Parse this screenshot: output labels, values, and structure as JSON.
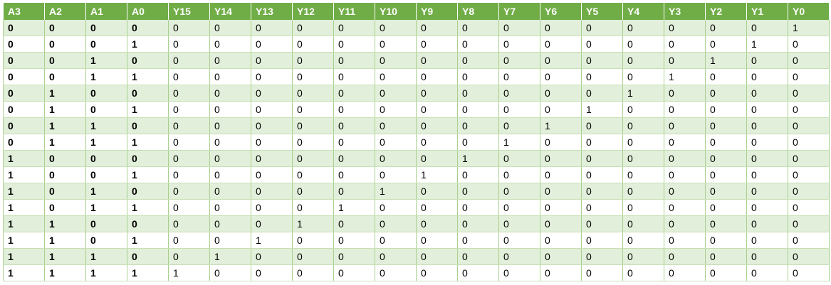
{
  "table": {
    "inputs": [
      "A3",
      "A2",
      "A1",
      "A0"
    ],
    "outputs": [
      "Y15",
      "Y14",
      "Y13",
      "Y12",
      "Y11",
      "Y10",
      "Y9",
      "Y8",
      "Y7",
      "Y6",
      "Y5",
      "Y4",
      "Y3",
      "Y2",
      "Y1",
      "Y0"
    ],
    "rows": [
      {
        "in": [
          "0",
          "0",
          "0",
          "0"
        ],
        "out": [
          "0",
          "0",
          "0",
          "0",
          "0",
          "0",
          "0",
          "0",
          "0",
          "0",
          "0",
          "0",
          "0",
          "0",
          "0",
          "1"
        ]
      },
      {
        "in": [
          "0",
          "0",
          "0",
          "1"
        ],
        "out": [
          "0",
          "0",
          "0",
          "0",
          "0",
          "0",
          "0",
          "0",
          "0",
          "0",
          "0",
          "0",
          "0",
          "0",
          "1",
          "0"
        ]
      },
      {
        "in": [
          "0",
          "0",
          "1",
          "0"
        ],
        "out": [
          "0",
          "0",
          "0",
          "0",
          "0",
          "0",
          "0",
          "0",
          "0",
          "0",
          "0",
          "0",
          "0",
          "1",
          "0",
          "0"
        ]
      },
      {
        "in": [
          "0",
          "0",
          "1",
          "1"
        ],
        "out": [
          "0",
          "0",
          "0",
          "0",
          "0",
          "0",
          "0",
          "0",
          "0",
          "0",
          "0",
          "0",
          "1",
          "0",
          "0",
          "0"
        ]
      },
      {
        "in": [
          "0",
          "1",
          "0",
          "0"
        ],
        "out": [
          "0",
          "0",
          "0",
          "0",
          "0",
          "0",
          "0",
          "0",
          "0",
          "0",
          "0",
          "1",
          "0",
          "0",
          "0",
          "0"
        ]
      },
      {
        "in": [
          "0",
          "1",
          "0",
          "1"
        ],
        "out": [
          "0",
          "0",
          "0",
          "0",
          "0",
          "0",
          "0",
          "0",
          "0",
          "0",
          "1",
          "0",
          "0",
          "0",
          "0",
          "0"
        ]
      },
      {
        "in": [
          "0",
          "1",
          "1",
          "0"
        ],
        "out": [
          "0",
          "0",
          "0",
          "0",
          "0",
          "0",
          "0",
          "0",
          "0",
          "1",
          "0",
          "0",
          "0",
          "0",
          "0",
          "0"
        ]
      },
      {
        "in": [
          "0",
          "1",
          "1",
          "1"
        ],
        "out": [
          "0",
          "0",
          "0",
          "0",
          "0",
          "0",
          "0",
          "0",
          "1",
          "0",
          "0",
          "0",
          "0",
          "0",
          "0",
          "0"
        ]
      },
      {
        "in": [
          "1",
          "0",
          "0",
          "0"
        ],
        "out": [
          "0",
          "0",
          "0",
          "0",
          "0",
          "0",
          "0",
          "1",
          "0",
          "0",
          "0",
          "0",
          "0",
          "0",
          "0",
          "0"
        ]
      },
      {
        "in": [
          "1",
          "0",
          "0",
          "1"
        ],
        "out": [
          "0",
          "0",
          "0",
          "0",
          "0",
          "0",
          "1",
          "0",
          "0",
          "0",
          "0",
          "0",
          "0",
          "0",
          "0",
          "0"
        ]
      },
      {
        "in": [
          "1",
          "0",
          "1",
          "0"
        ],
        "out": [
          "0",
          "0",
          "0",
          "0",
          "0",
          "1",
          "0",
          "0",
          "0",
          "0",
          "0",
          "0",
          "0",
          "0",
          "0",
          "0"
        ]
      },
      {
        "in": [
          "1",
          "0",
          "1",
          "1"
        ],
        "out": [
          "0",
          "0",
          "0",
          "0",
          "1",
          "0",
          "0",
          "0",
          "0",
          "0",
          "0",
          "0",
          "0",
          "0",
          "0",
          "0"
        ]
      },
      {
        "in": [
          "1",
          "1",
          "0",
          "0"
        ],
        "out": [
          "0",
          "0",
          "0",
          "1",
          "0",
          "0",
          "0",
          "0",
          "0",
          "0",
          "0",
          "0",
          "0",
          "0",
          "0",
          "0"
        ]
      },
      {
        "in": [
          "1",
          "1",
          "0",
          "1"
        ],
        "out": [
          "0",
          "0",
          "1",
          "0",
          "0",
          "0",
          "0",
          "0",
          "0",
          "0",
          "0",
          "0",
          "0",
          "0",
          "0",
          "0"
        ]
      },
      {
        "in": [
          "1",
          "1",
          "1",
          "0"
        ],
        "out": [
          "0",
          "1",
          "0",
          "0",
          "0",
          "0",
          "0",
          "0",
          "0",
          "0",
          "0",
          "0",
          "0",
          "0",
          "0",
          "0"
        ]
      },
      {
        "in": [
          "1",
          "1",
          "1",
          "1"
        ],
        "out": [
          "1",
          "0",
          "0",
          "0",
          "0",
          "0",
          "0",
          "0",
          "0",
          "0",
          "0",
          "0",
          "0",
          "0",
          "0",
          "0"
        ]
      }
    ]
  },
  "colors": {
    "header_bg": "#70ad47",
    "header_text": "#ffffff",
    "row_band": "#e2efda",
    "row_plain": "#ffffff",
    "border": "#a9d08e"
  }
}
